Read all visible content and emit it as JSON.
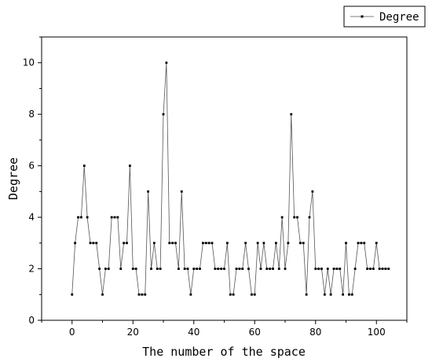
{
  "chart_data": {
    "type": "line",
    "xlabel": "The number of the space",
    "ylabel": "Degree",
    "xlim": [
      -10,
      110
    ],
    "ylim": [
      0,
      11
    ],
    "xticks": [
      0,
      20,
      40,
      60,
      80,
      100
    ],
    "yticks": [
      0,
      2,
      4,
      6,
      8,
      10
    ],
    "grid": false,
    "legend_position": "top-right",
    "series": [
      {
        "name": "Degree",
        "color": "#000000",
        "marker": "square",
        "x": [
          0,
          1,
          2,
          3,
          4,
          5,
          6,
          7,
          8,
          9,
          10,
          11,
          12,
          13,
          14,
          15,
          16,
          17,
          18,
          19,
          20,
          21,
          22,
          23,
          24,
          25,
          26,
          27,
          28,
          29,
          30,
          31,
          32,
          33,
          34,
          35,
          36,
          37,
          38,
          39,
          40,
          41,
          42,
          43,
          44,
          45,
          46,
          47,
          48,
          49,
          50,
          51,
          52,
          53,
          54,
          55,
          56,
          57,
          58,
          59,
          60,
          61,
          62,
          63,
          64,
          65,
          66,
          67,
          68,
          69,
          70,
          71,
          72,
          73,
          74,
          75,
          76,
          77,
          78,
          79,
          80,
          81,
          82,
          83,
          84,
          85,
          86,
          87,
          88,
          89,
          90,
          91,
          92,
          93,
          94,
          95,
          96,
          97,
          98,
          99,
          100,
          101,
          102,
          103,
          104
        ],
        "y": [
          1,
          3,
          4,
          4,
          6,
          4,
          3,
          3,
          3,
          2,
          1,
          2,
          2,
          4,
          4,
          4,
          2,
          3,
          3,
          6,
          2,
          2,
          1,
          1,
          1,
          5,
          2,
          3,
          2,
          2,
          8,
          10,
          3,
          3,
          3,
          2,
          5,
          2,
          2,
          1,
          2,
          2,
          2,
          3,
          3,
          3,
          3,
          2,
          2,
          2,
          2,
          3,
          1,
          1,
          2,
          2,
          2,
          3,
          2,
          1,
          1,
          3,
          2,
          3,
          2,
          2,
          2,
          3,
          2,
          4,
          2,
          3,
          8,
          4,
          4,
          3,
          3,
          1,
          4,
          5,
          2,
          2,
          2,
          1,
          2,
          1,
          2,
          2,
          2,
          1,
          3,
          1,
          1,
          2,
          3,
          3,
          3,
          2,
          2,
          2,
          3,
          2,
          2,
          2,
          2
        ]
      }
    ]
  }
}
